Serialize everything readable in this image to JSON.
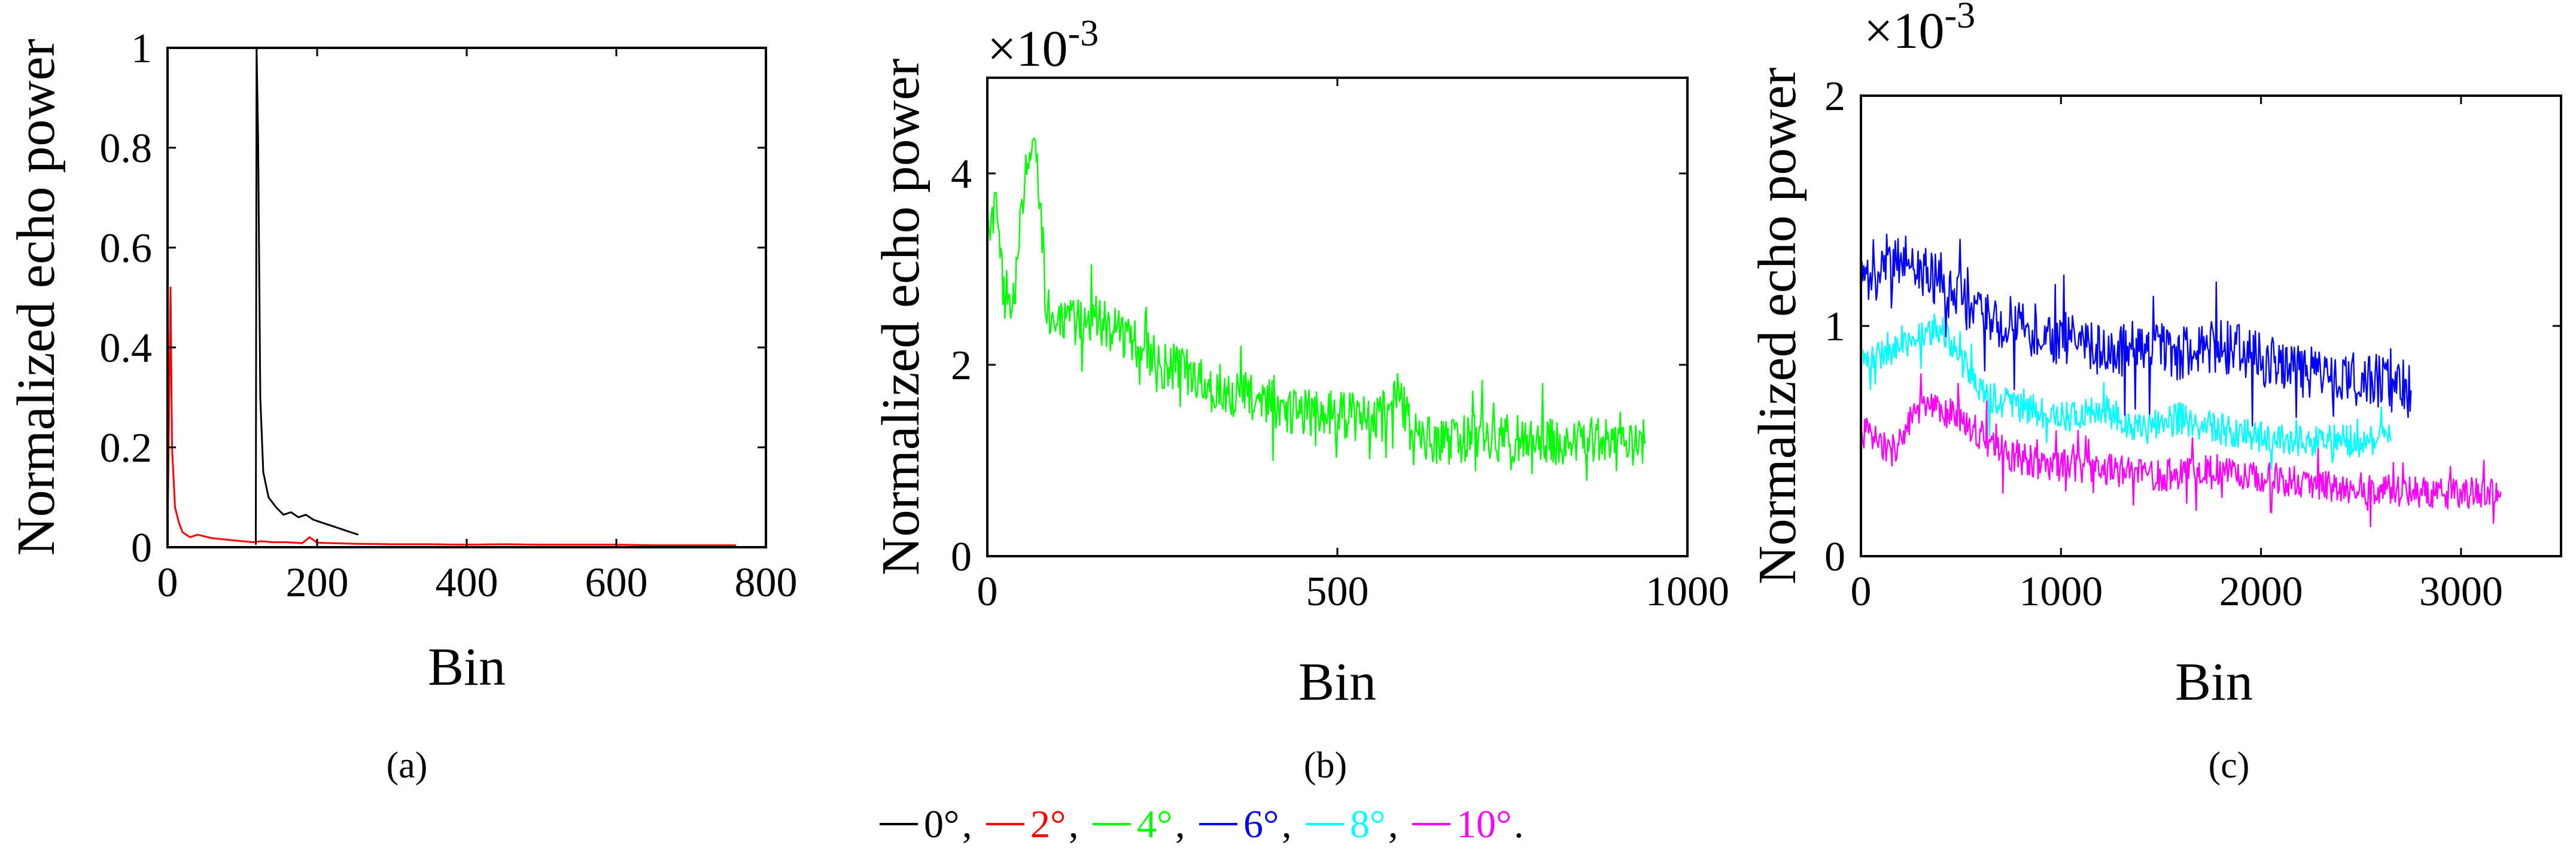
{
  "colors": {
    "0deg": "#000000",
    "2deg": "#ff0000",
    "4deg": "#00ff00",
    "6deg": "#0000ff",
    "8deg": "#00ffff",
    "10deg": "#ff00ff"
  },
  "legend": [
    {
      "label": "0°",
      "sep": ",",
      "color": "#000000"
    },
    {
      "label": "2°",
      "sep": ",",
      "color": "#ff0000"
    },
    {
      "label": "4°",
      "sep": ",",
      "color": "#00ff00"
    },
    {
      "label": "6°",
      "sep": ",",
      "color": "#0000ff"
    },
    {
      "label": "8°",
      "sep": ",",
      "color": "#00ffff"
    },
    {
      "label": "10°",
      "sep": ".",
      "color": "#ff00ff"
    }
  ],
  "chart_data": [
    {
      "type": "line",
      "caption": "(a)",
      "xlabel": "Bin",
      "ylabel": "Normalized echo power",
      "xlim": [
        0,
        800
      ],
      "ylim": [
        0,
        1
      ],
      "xticks": [
        0,
        200,
        400,
        600,
        800
      ],
      "xtick_labels": [
        "0",
        "200",
        "400",
        "600",
        "800"
      ],
      "yticks": [
        0,
        0.2,
        0.4,
        0.6,
        0.8,
        1
      ],
      "ytick_labels": [
        "0",
        "0.2",
        "0.4",
        "0.6",
        "0.8",
        "1"
      ],
      "series": [
        {
          "name": "2°",
          "color": "#ff0000",
          "points": [
            [
              0,
              0.02
            ],
            [
              4,
              0.52
            ],
            [
              6,
              0.2
            ],
            [
              10,
              0.08
            ],
            [
              15,
              0.05
            ],
            [
              20,
              0.03
            ],
            [
              30,
              0.02
            ],
            [
              40,
              0.025
            ],
            [
              60,
              0.018
            ],
            [
              80,
              0.015
            ],
            [
              100,
              0.012
            ],
            [
              115,
              0.01
            ],
            [
              125,
              0.012
            ],
            [
              140,
              0.01
            ],
            [
              160,
              0.01
            ],
            [
              180,
              0.008
            ],
            [
              190,
              0.02
            ],
            [
              200,
              0.009
            ],
            [
              250,
              0.007
            ],
            [
              300,
              0.006
            ],
            [
              350,
              0.006
            ],
            [
              400,
              0.005
            ],
            [
              450,
              0.006
            ],
            [
              500,
              0.005
            ],
            [
              550,
              0.005
            ],
            [
              600,
              0.005
            ],
            [
              650,
              0.004
            ],
            [
              700,
              0.004
            ],
            [
              760,
              0.004
            ]
          ]
        },
        {
          "name": "0°",
          "color": "#000000",
          "points": [
            [
              118,
              0.005
            ],
            [
              119,
              1.0
            ],
            [
              121,
              0.82
            ],
            [
              124,
              0.3
            ],
            [
              128,
              0.15
            ],
            [
              135,
              0.1
            ],
            [
              145,
              0.08
            ],
            [
              155,
              0.065
            ],
            [
              165,
              0.07
            ],
            [
              175,
              0.06
            ],
            [
              185,
              0.065
            ],
            [
              195,
              0.055
            ],
            [
              205,
              0.05
            ],
            [
              215,
              0.045
            ],
            [
              225,
              0.04
            ],
            [
              235,
              0.035
            ],
            [
              245,
              0.03
            ],
            [
              255,
              0.025
            ]
          ]
        }
      ]
    },
    {
      "type": "line",
      "caption": "(b)",
      "xlabel": "Bin",
      "ylabel": "Normalized echo power",
      "multiplier": "×10",
      "multiplier_exp": "-3",
      "xlim": [
        0,
        1000
      ],
      "ylim": [
        0,
        0.005
      ],
      "xticks": [
        0,
        500,
        1000
      ],
      "xtick_labels": [
        "0",
        "500",
        "1000"
      ],
      "yticks": [
        0,
        0.002,
        0.004
      ],
      "ytick_labels": [
        "0",
        "2",
        "4"
      ],
      "series": [
        {
          "name": "4°",
          "color": "#00ff00",
          "noise": 0.00025,
          "points": [
            [
              0,
              0.0032
            ],
            [
              10,
              0.0038
            ],
            [
              25,
              0.0026
            ],
            [
              40,
              0.0028
            ],
            [
              55,
              0.004
            ],
            [
              70,
              0.0043
            ],
            [
              85,
              0.0026
            ],
            [
              100,
              0.0024
            ],
            [
              150,
              0.0025
            ],
            [
              200,
              0.0023
            ],
            [
              250,
              0.002
            ],
            [
              300,
              0.0019
            ],
            [
              350,
              0.0017
            ],
            [
              400,
              0.0016
            ],
            [
              450,
              0.0015
            ],
            [
              500,
              0.0015
            ],
            [
              550,
              0.0014
            ],
            [
              575,
              0.0016
            ],
            [
              590,
              0.0017
            ],
            [
              605,
              0.0013
            ],
            [
              650,
              0.0012
            ],
            [
              700,
              0.00125
            ],
            [
              800,
              0.0012
            ],
            [
              900,
              0.0012
            ],
            [
              940,
              0.0012
            ]
          ]
        }
      ]
    },
    {
      "type": "line",
      "caption": "(c)",
      "xlabel": "Bin",
      "ylabel": "Normalized echo power",
      "multiplier": "×10",
      "multiplier_exp": "-3",
      "xlim": [
        0,
        3500
      ],
      "ylim": [
        0,
        0.002
      ],
      "xticks": [
        0,
        1000,
        2000,
        3000
      ],
      "xtick_labels": [
        "0",
        "1000",
        "2000",
        "3000"
      ],
      "yticks": [
        0,
        0.001,
        0.002
      ],
      "ytick_labels": [
        "0",
        "1",
        "2"
      ],
      "series": [
        {
          "name": "10°",
          "color": "#ff00ff",
          "noise": 7e-05,
          "points": [
            [
              0,
              0.00055
            ],
            [
              150,
              0.00045
            ],
            [
              300,
              0.00065
            ],
            [
              500,
              0.0006
            ],
            [
              700,
              0.00045
            ],
            [
              900,
              0.0004
            ],
            [
              1200,
              0.00038
            ],
            [
              1500,
              0.00035
            ],
            [
              1800,
              0.00038
            ],
            [
              2100,
              0.00033
            ],
            [
              2400,
              0.0003
            ],
            [
              2700,
              0.00028
            ],
            [
              3000,
              0.00027
            ],
            [
              3200,
              0.00028
            ]
          ]
        },
        {
          "name": "8°",
          "color": "#00ffff",
          "noise": 7e-05,
          "points": [
            [
              0,
              0.00085
            ],
            [
              200,
              0.0009
            ],
            [
              400,
              0.001
            ],
            [
              600,
              0.0007
            ],
            [
              800,
              0.00065
            ],
            [
              1000,
              0.0006
            ],
            [
              1200,
              0.00065
            ],
            [
              1400,
              0.00055
            ],
            [
              1600,
              0.0006
            ],
            [
              1800,
              0.00055
            ],
            [
              2000,
              0.00052
            ],
            [
              2200,
              0.0005
            ],
            [
              2400,
              0.0005
            ],
            [
              2650,
              0.0005
            ]
          ]
        },
        {
          "name": "6°",
          "color": "#0000ff",
          "noise": 0.00012,
          "points": [
            [
              0,
              0.0012
            ],
            [
              200,
              0.0013
            ],
            [
              400,
              0.0012
            ],
            [
              600,
              0.00105
            ],
            [
              800,
              0.001
            ],
            [
              1000,
              0.00095
            ],
            [
              1200,
              0.0009
            ],
            [
              1400,
              0.0009
            ],
            [
              1600,
              0.00088
            ],
            [
              1800,
              0.00092
            ],
            [
              2000,
              0.00085
            ],
            [
              2200,
              0.0008
            ],
            [
              2400,
              0.00078
            ],
            [
              2600,
              0.00075
            ],
            [
              2750,
              0.00072
            ]
          ]
        }
      ]
    }
  ]
}
